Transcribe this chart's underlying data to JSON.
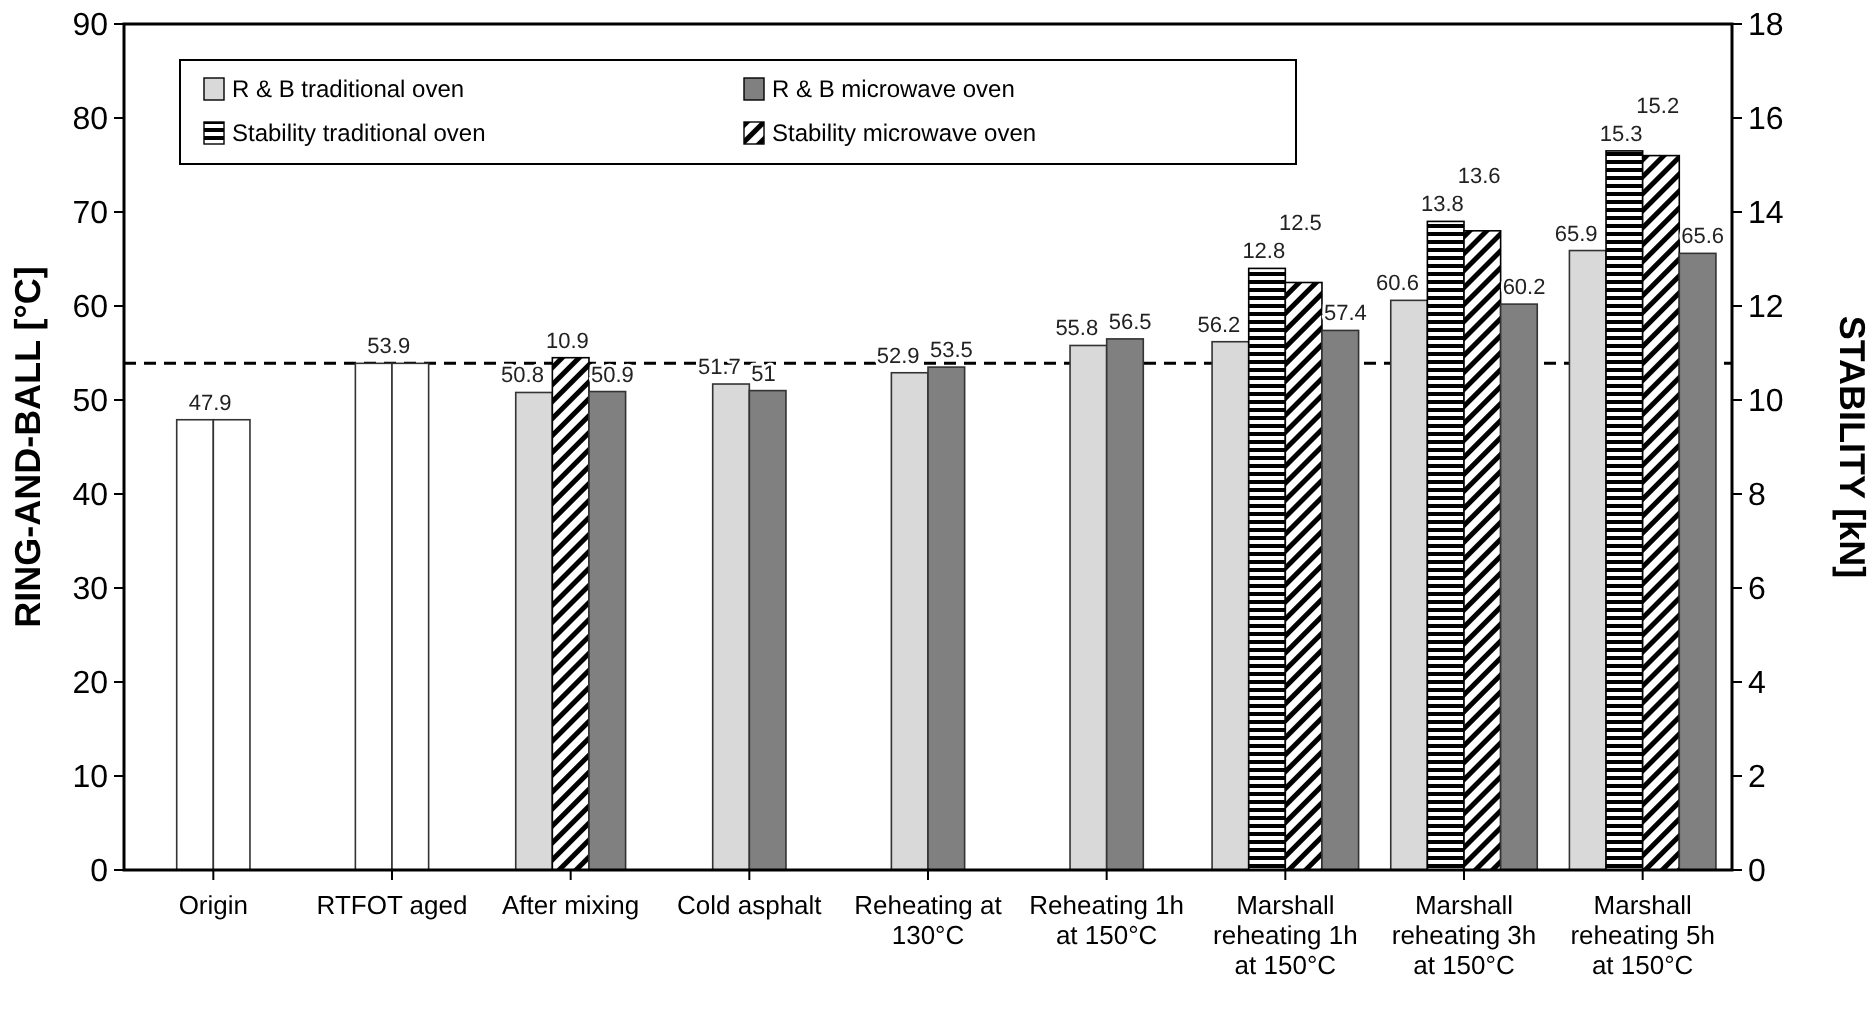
{
  "chart_data": {
    "type": "bar",
    "categories": [
      "Origin",
      "RTFOT aged",
      "After mixing",
      "Cold asphalt",
      "Reheating at 130°C",
      "Reheating 1h at 150°C",
      "Marshall reheating 1h at 150°C",
      "Marshall reheating 3h at 150°C",
      "Marshall reheating 5h at 150°C"
    ],
    "series": [
      {
        "name": "R & B traditional oven",
        "color": "#d9d9d9",
        "colors": [
          "#ffffff",
          "#ffffff",
          "#d9d9d9",
          "#d9d9d9",
          "#d9d9d9",
          "#d9d9d9",
          "#d9d9d9",
          "#d9d9d9",
          "#d9d9d9"
        ],
        "values": [
          47.9,
          53.9,
          50.8,
          51.7,
          52.9,
          55.8,
          56.2,
          60.6,
          65.9
        ],
        "value_labels": [
          "47.9",
          "53.9",
          "50.8",
          "51.7",
          "52.9",
          "55.8",
          "56.2",
          "60.6",
          "65.9"
        ]
      },
      {
        "name": "Stability traditional oven",
        "color": "#000000",
        "axis": "y2",
        "values": [
          null,
          null,
          null,
          null,
          null,
          null,
          12.8,
          13.8,
          15.3
        ],
        "value_labels": [
          null,
          null,
          null,
          null,
          null,
          null,
          "12.8",
          "13.8",
          "15.3"
        ]
      },
      {
        "name": "Stability microwave oven",
        "color": "#000000",
        "axis": "y2",
        "values": [
          null,
          null,
          10.9,
          null,
          null,
          null,
          12.5,
          13.6,
          15.2
        ],
        "value_labels": [
          null,
          null,
          "10.9",
          null,
          null,
          null,
          "12.5",
          "13.6",
          "15.2"
        ]
      },
      {
        "name": "R & B microwave oven",
        "color": "#808080",
        "colors": [
          "#ffffff",
          "#ffffff",
          "#808080",
          "#808080",
          "#808080",
          "#808080",
          "#808080",
          "#808080",
          "#808080"
        ],
        "values": [
          47.9,
          53.9,
          50.9,
          51,
          53.5,
          56.5,
          57.4,
          60.2,
          65.6
        ],
        "value_labels": [
          null,
          null,
          "50.9",
          "51",
          "53.5",
          "56.5",
          "57.4",
          "60.2",
          "65.6"
        ]
      }
    ],
    "ylabel": "RING-AND-BALL [°C]",
    "y2label": "STABILITY [kN]",
    "ylim": [
      0,
      90
    ],
    "yticks": [
      0,
      10,
      20,
      30,
      40,
      50,
      60,
      70,
      80,
      90
    ],
    "y2lim": [
      0,
      18
    ],
    "y2ticks": [
      0,
      2,
      4,
      6,
      8,
      10,
      12,
      14,
      16,
      18
    ],
    "ref_lines": [
      {
        "axis": "y",
        "value": 53.9,
        "color": "#000000",
        "line_style": "dashed"
      }
    ],
    "legend": "top",
    "grid": false
  }
}
